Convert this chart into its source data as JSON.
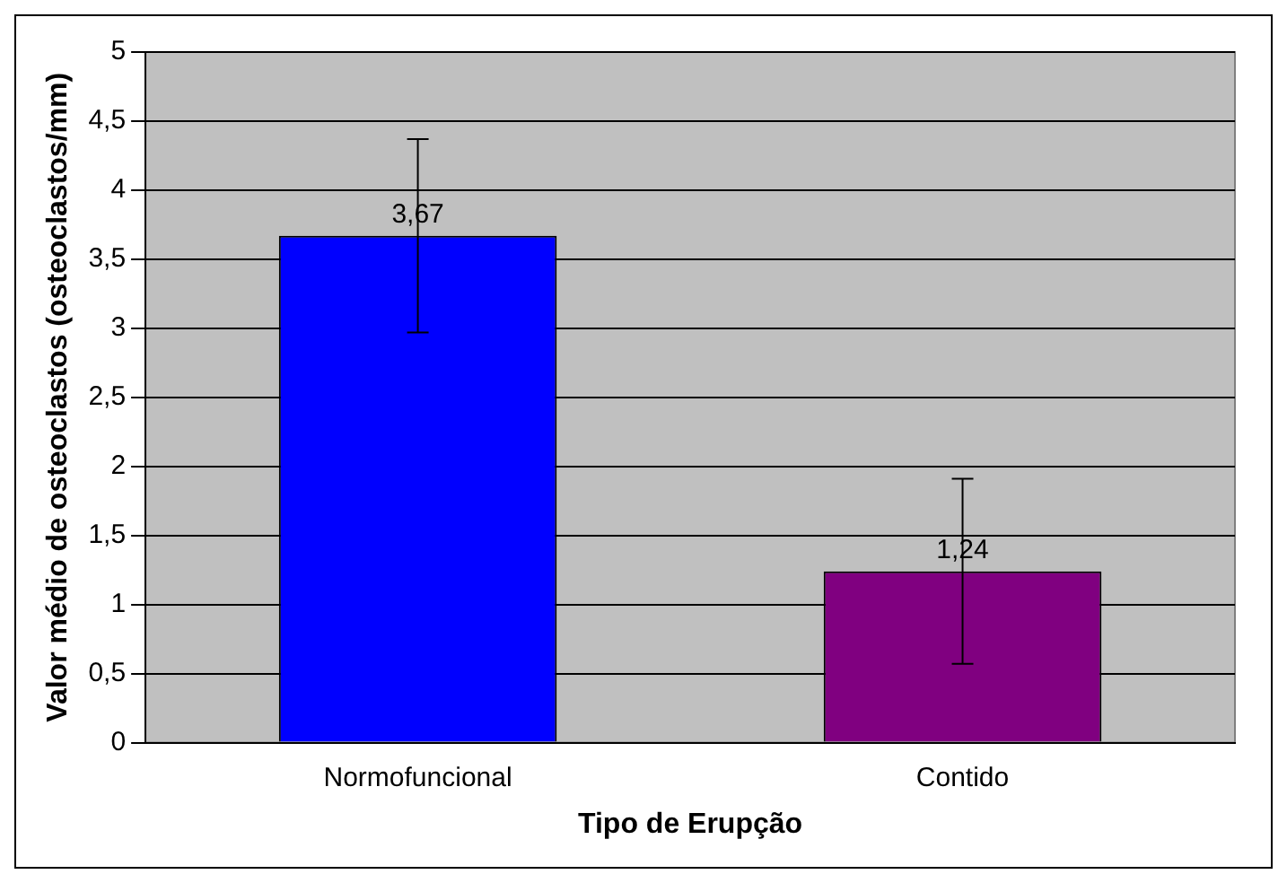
{
  "chart_data": {
    "type": "bar",
    "xlabel": "Tipo de Erupção",
    "ylabel": "Valor médio de osteoclastos (osteoclastos/mm)",
    "categories": [
      "Normofuncional",
      "Contido"
    ],
    "values": [
      3.67,
      1.24
    ],
    "colors": [
      "#0000ff",
      "#800080"
    ],
    "errors": [
      0.7,
      0.67
    ],
    "value_labels": [
      "3,67",
      "1,24"
    ],
    "ylim": [
      0,
      5
    ],
    "yticks": [
      0,
      {
        "value": 0.5,
        "label": "0,5"
      },
      1,
      {
        "value": 1.5,
        "label": "1,5"
      },
      2,
      {
        "value": 2.5,
        "label": "2,5"
      },
      3,
      {
        "value": 3.5,
        "label": "3,5"
      },
      4,
      {
        "value": 4.5,
        "label": "4,5"
      },
      5
    ],
    "grid": "y",
    "legend": false
  }
}
